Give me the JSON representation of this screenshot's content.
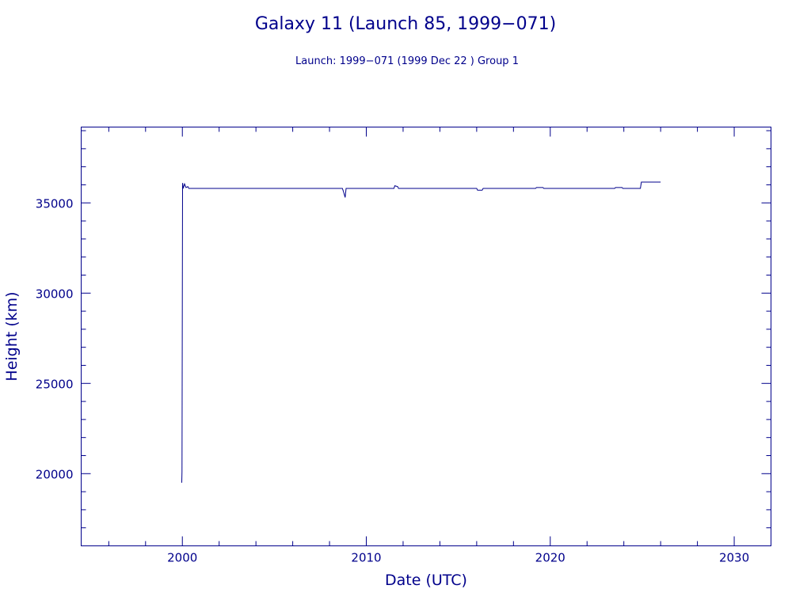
{
  "chart_data": {
    "type": "line",
    "title": "Galaxy 11 (Launch 85, 1999−071)",
    "subtitle": "Launch: 1999−071  (1999 Dec 22 )  Group 1",
    "xlabel": "Date (UTC)",
    "ylabel": "Height (km)",
    "xlim": [
      1994.5,
      2032
    ],
    "ylim": [
      16000,
      39200
    ],
    "x_ticks": [
      2000,
      2010,
      2020,
      2030
    ],
    "y_ticks": [
      20000,
      25000,
      30000,
      35000
    ],
    "grid": false,
    "series": [
      {
        "color": "#00008b",
        "points": [
          [
            1999.97,
            19500
          ],
          [
            1999.98,
            20100
          ],
          [
            2000.01,
            36100
          ],
          [
            2000.05,
            35800
          ],
          [
            2000.12,
            36050
          ],
          [
            2000.2,
            35850
          ],
          [
            2000.3,
            35900
          ],
          [
            2000.35,
            35800
          ],
          [
            2001,
            35800
          ],
          [
            2008.7,
            35800
          ],
          [
            2008.75,
            35650
          ],
          [
            2008.85,
            35300
          ],
          [
            2008.9,
            35800
          ],
          [
            2011.5,
            35800
          ],
          [
            2011.55,
            35950
          ],
          [
            2011.7,
            35900
          ],
          [
            2011.75,
            35800
          ],
          [
            2016.0,
            35800
          ],
          [
            2016.05,
            35700
          ],
          [
            2016.3,
            35700
          ],
          [
            2016.35,
            35800
          ],
          [
            2019.2,
            35800
          ],
          [
            2019.25,
            35850
          ],
          [
            2019.6,
            35850
          ],
          [
            2019.65,
            35800
          ],
          [
            2023.5,
            35800
          ],
          [
            2023.55,
            35850
          ],
          [
            2023.9,
            35850
          ],
          [
            2023.95,
            35800
          ],
          [
            2024.9,
            35800
          ],
          [
            2024.95,
            36150
          ],
          [
            2026.0,
            36150
          ]
        ]
      }
    ]
  }
}
